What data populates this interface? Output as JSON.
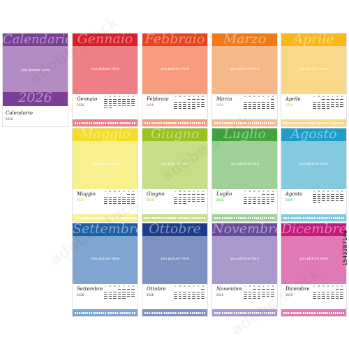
{
  "cover": {
    "title": "Calendario",
    "year": "2026",
    "label": "Calendario",
    "small_year": "2026",
    "photo_text": "you picture here",
    "color": "#7b3f98",
    "photo_color": "#b48cc4"
  },
  "weekdays": [
    "L",
    "M",
    "M",
    "G",
    "V",
    "S",
    "D"
  ],
  "photo_text": "you picture here",
  "year": "2026",
  "months": [
    {
      "name": "Gennaio",
      "color": "#d81f2a",
      "photo": "#ef7f86",
      "year_color": "#d81f2a"
    },
    {
      "name": "Febbraio",
      "color": "#e8431f",
      "photo": "#f79a7e",
      "year_color": "#e8431f"
    },
    {
      "name": "Marzo",
      "color": "#ef7a1a",
      "photo": "#f7b889",
      "year_color": "#ef7a1a"
    },
    {
      "name": "Aprile",
      "color": "#f8b81a",
      "photo": "#fbd78a",
      "year_color": "#f8b81a"
    },
    {
      "name": "Maggio",
      "color": "#f4dc27",
      "photo": "#f8ef8f",
      "year_color": "#e3c81c"
    },
    {
      "name": "Giugno",
      "color": "#97c21f",
      "photo": "#c6de86",
      "year_color": "#97c21f"
    },
    {
      "name": "Luglio",
      "color": "#41a53a",
      "photo": "#9ed097",
      "year_color": "#41a53a"
    },
    {
      "name": "Agosto",
      "color": "#1f9dc8",
      "photo": "#84c9e0",
      "year_color": "#1f9dc8"
    },
    {
      "name": "Settembre",
      "color": "#1e5fa7",
      "photo": "#7fa6d1",
      "year_color": "#1e5fa7"
    },
    {
      "name": "Ottobre",
      "color": "#1d3d8a",
      "photo": "#7f91c0",
      "year_color": "#1d3d8a"
    },
    {
      "name": "Novembre",
      "color": "#6a4a9c",
      "photo": "#a898cb",
      "year_color": "#6a4a9c"
    },
    {
      "name": "Dicembre",
      "color": "#c6197d",
      "photo": "#e07ab5",
      "year_color": "#c6197d"
    }
  ],
  "stock_id": "1543287146"
}
